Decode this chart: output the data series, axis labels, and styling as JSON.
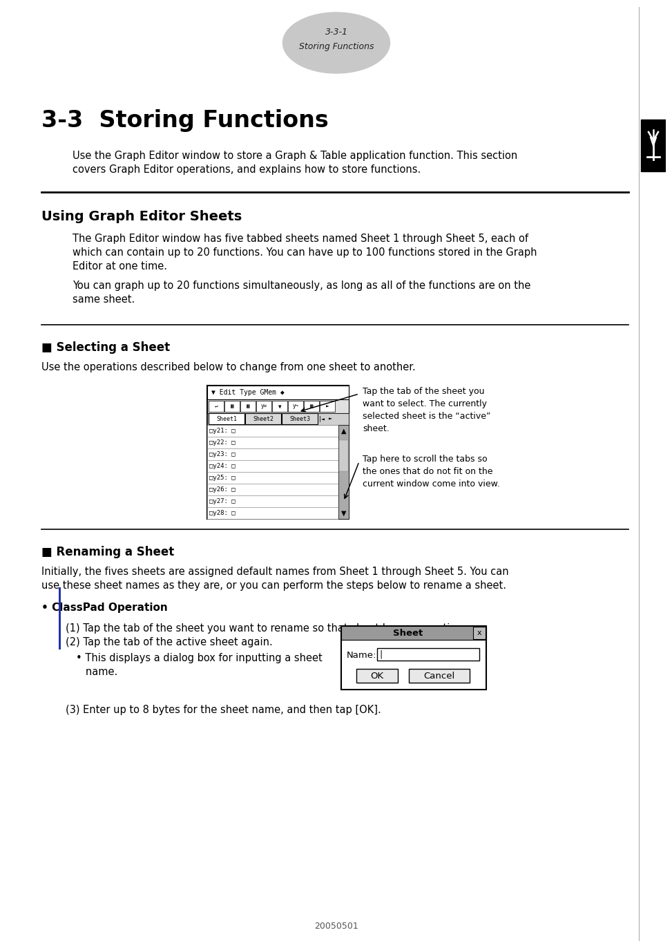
{
  "page_bg": "#ffffff",
  "header_ellipse_color": "#c8c8c8",
  "header_text1": "3-3-1",
  "header_text2": "Storing Functions",
  "main_title": "3-3  Storing Functions",
  "intro_text1": "Use the Graph Editor window to store a Graph & Table application function. This section",
  "intro_text2": "covers Graph Editor operations, and explains how to store functions.",
  "section1_title": "Using Graph Editor Sheets",
  "section1_body1": "The Graph Editor window has five tabbed sheets named Sheet 1 through Sheet 5, each of",
  "section1_body2": "which can contain up to 20 functions. You can have up to 100 functions stored in the Graph",
  "section1_body3": "Editor at one time.",
  "section1_body4": "You can graph up to 20 functions simultaneously, as long as all of the functions are on the",
  "section1_body5": "same sheet.",
  "subsection1_title": "■ Selecting a Sheet",
  "subsection1_body": "Use the operations described below to change from one sheet to another.",
  "annotation1": "Tap the tab of the sheet you\nwant to select. The currently\nselected sheet is the “active”\nsheet.",
  "annotation2": "Tap here to scroll the tabs so\nthe ones that do not fit on the\ncurrent window come into view.",
  "subsection2_title": "■ Renaming a Sheet",
  "subsection2_body1": "Initially, the fives sheets are assigned default names from Sheet 1 through Sheet 5. You can",
  "subsection2_body2": "use these sheet names as they are, or you can perform the steps below to rename a sheet.",
  "bullet_title": "• ClassPad Operation",
  "step1": "(1) Tap the tab of the sheet you want to rename so that sheet becomes active.",
  "step2": "(2) Tap the tab of the active sheet again.",
  "step2_bullet1": "• This displays a dialog box for inputting a sheet",
  "step2_bullet2": "   name.",
  "step3": "(3) Enter up to 8 bytes for the sheet name, and then tap [OK].",
  "dialog_title": "Sheet",
  "dialog_label": "Name:",
  "dialog_btn1": "OK",
  "dialog_btn2": "Cancel",
  "footer_text": "20050501",
  "menu_text": "▼ Edit Type GMem ◆",
  "rows": [
    "□y21: □",
    "□y22: □",
    "□y23: □",
    "□y24: □",
    "□y25: □",
    "□y26: □",
    "□y27: □",
    "□y28: □"
  ]
}
